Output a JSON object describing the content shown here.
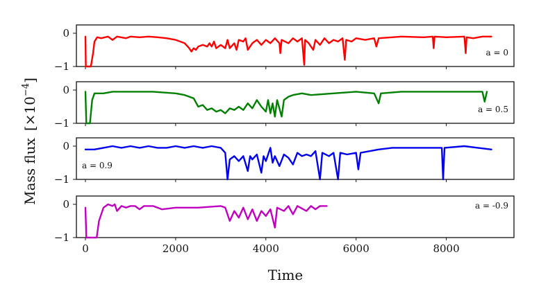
{
  "chart_data": {
    "type": "line",
    "ylabel": "Mass flux",
    "ylabel_unit_prefix": "[×10",
    "ylabel_unit_exponent": "−4",
    "ylabel_unit_suffix": "]",
    "xlabel": "Time",
    "x_ticks": [
      0,
      2000,
      4000,
      6000,
      8000
    ],
    "y_ticks": [
      0,
      -1
    ],
    "y_tick_labels": [
      "0",
      "−1"
    ],
    "xlim": [
      -200,
      9500
    ],
    "ylim": [
      -1,
      0.25
    ],
    "grid": false,
    "panels": [
      {
        "label": "a = 0",
        "label_position": "bottom-right",
        "color": "#ff0000",
        "points": [
          [
            0,
            -0.1
          ],
          [
            10,
            -1
          ],
          [
            60,
            -1
          ],
          [
            120,
            -1
          ],
          [
            170,
            -0.6
          ],
          [
            200,
            -0.25
          ],
          [
            260,
            -0.12
          ],
          [
            350,
            -0.15
          ],
          [
            500,
            -0.1
          ],
          [
            600,
            -0.2
          ],
          [
            700,
            -0.1
          ],
          [
            900,
            -0.15
          ],
          [
            1000,
            -0.1
          ],
          [
            1200,
            -0.12
          ],
          [
            1400,
            -0.1
          ],
          [
            1600,
            -0.12
          ],
          [
            1800,
            -0.15
          ],
          [
            2000,
            -0.2
          ],
          [
            2200,
            -0.3
          ],
          [
            2300,
            -0.45
          ],
          [
            2350,
            -0.55
          ],
          [
            2400,
            -0.45
          ],
          [
            2450,
            -0.5
          ],
          [
            2500,
            -0.4
          ],
          [
            2600,
            -0.35
          ],
          [
            2700,
            -0.4
          ],
          [
            2750,
            -0.3
          ],
          [
            2800,
            -0.4
          ],
          [
            2850,
            -0.25
          ],
          [
            2900,
            -0.45
          ],
          [
            3000,
            -0.35
          ],
          [
            3100,
            -0.45
          ],
          [
            3150,
            -0.2
          ],
          [
            3200,
            -0.45
          ],
          [
            3300,
            -0.3
          ],
          [
            3350,
            -0.5
          ],
          [
            3400,
            -0.2
          ],
          [
            3500,
            -0.25
          ],
          [
            3550,
            -0.15
          ],
          [
            3600,
            -0.5
          ],
          [
            3700,
            -0.3
          ],
          [
            3800,
            -0.2
          ],
          [
            3900,
            -0.35
          ],
          [
            4000,
            -0.2
          ],
          [
            4100,
            -0.3
          ],
          [
            4200,
            -0.15
          ],
          [
            4300,
            -0.3
          ],
          [
            4320,
            -0.6
          ],
          [
            4350,
            -0.2
          ],
          [
            4500,
            -0.3
          ],
          [
            4600,
            -0.15
          ],
          [
            4700,
            -0.25
          ],
          [
            4800,
            -0.15
          ],
          [
            4850,
            -0.95
          ],
          [
            4870,
            -0.2
          ],
          [
            4950,
            -0.3
          ],
          [
            5050,
            -0.5
          ],
          [
            5100,
            -0.2
          ],
          [
            5200,
            -0.35
          ],
          [
            5300,
            -0.15
          ],
          [
            5400,
            -0.3
          ],
          [
            5500,
            -0.2
          ],
          [
            5600,
            -0.25
          ],
          [
            5700,
            -0.15
          ],
          [
            5750,
            -0.8
          ],
          [
            5780,
            -0.2
          ],
          [
            5900,
            -0.25
          ],
          [
            6000,
            -0.15
          ],
          [
            6200,
            -0.2
          ],
          [
            6400,
            -0.15
          ],
          [
            6450,
            -0.4
          ],
          [
            6500,
            -0.15
          ],
          [
            6800,
            -0.12
          ],
          [
            7000,
            -0.1
          ],
          [
            7500,
            -0.12
          ],
          [
            7700,
            -0.1
          ],
          [
            7720,
            -0.45
          ],
          [
            7740,
            -0.1
          ],
          [
            8000,
            -0.12
          ],
          [
            8400,
            -0.1
          ],
          [
            8430,
            -0.6
          ],
          [
            8450,
            -0.12
          ],
          [
            8600,
            -0.15
          ],
          [
            8800,
            -0.1
          ],
          [
            9000,
            -0.1
          ]
        ]
      },
      {
        "label": "a = 0.5",
        "label_position": "bottom-right",
        "color": "#008000",
        "points": [
          [
            0,
            -0.05
          ],
          [
            20,
            -1
          ],
          [
            100,
            -1
          ],
          [
            150,
            -0.3
          ],
          [
            200,
            -0.1
          ],
          [
            300,
            -0.1
          ],
          [
            400,
            -0.1
          ],
          [
            600,
            -0.05
          ],
          [
            1000,
            -0.05
          ],
          [
            1500,
            -0.05
          ],
          [
            2000,
            -0.1
          ],
          [
            2200,
            -0.15
          ],
          [
            2400,
            -0.25
          ],
          [
            2500,
            -0.5
          ],
          [
            2600,
            -0.45
          ],
          [
            2700,
            -0.6
          ],
          [
            2800,
            -0.55
          ],
          [
            2900,
            -0.65
          ],
          [
            3000,
            -0.6
          ],
          [
            3100,
            -0.7
          ],
          [
            3200,
            -0.55
          ],
          [
            3300,
            -0.6
          ],
          [
            3400,
            -0.5
          ],
          [
            3500,
            -0.6
          ],
          [
            3600,
            -0.4
          ],
          [
            3700,
            -0.55
          ],
          [
            3800,
            -0.3
          ],
          [
            3900,
            -0.5
          ],
          [
            4000,
            -0.65
          ],
          [
            4050,
            -0.3
          ],
          [
            4100,
            -0.7
          ],
          [
            4150,
            -0.4
          ],
          [
            4200,
            -0.8
          ],
          [
            4250,
            -0.3
          ],
          [
            4300,
            -0.55
          ],
          [
            4350,
            -0.8
          ],
          [
            4400,
            -0.3
          ],
          [
            4500,
            -0.2
          ],
          [
            4600,
            -0.15
          ],
          [
            4800,
            -0.1
          ],
          [
            5000,
            -0.15
          ],
          [
            5500,
            -0.1
          ],
          [
            6000,
            -0.05
          ],
          [
            6400,
            -0.1
          ],
          [
            6500,
            -0.4
          ],
          [
            6550,
            -0.1
          ],
          [
            7000,
            -0.05
          ],
          [
            8000,
            -0.05
          ],
          [
            8800,
            -0.05
          ],
          [
            8850,
            -0.35
          ],
          [
            8900,
            -0.05
          ]
        ]
      },
      {
        "label": "a = 0.9",
        "label_position": "bottom-left",
        "color": "#0000ee",
        "points": [
          [
            0,
            -0.1
          ],
          [
            200,
            -0.1
          ],
          [
            400,
            -0.05
          ],
          [
            600,
            0
          ],
          [
            800,
            -0.05
          ],
          [
            1000,
            0
          ],
          [
            1200,
            -0.05
          ],
          [
            1400,
            0
          ],
          [
            1600,
            -0.05
          ],
          [
            1800,
            -0.05
          ],
          [
            2000,
            0
          ],
          [
            2200,
            -0.05
          ],
          [
            2400,
            0
          ],
          [
            2600,
            -0.05
          ],
          [
            2800,
            0
          ],
          [
            3000,
            -0.05
          ],
          [
            3100,
            -0.2
          ],
          [
            3150,
            -1
          ],
          [
            3200,
            -0.4
          ],
          [
            3300,
            -0.3
          ],
          [
            3400,
            -0.45
          ],
          [
            3500,
            -0.3
          ],
          [
            3600,
            -0.75
          ],
          [
            3650,
            -0.3
          ],
          [
            3700,
            -0.4
          ],
          [
            3800,
            -0.25
          ],
          [
            3900,
            -0.8
          ],
          [
            3950,
            -0.3
          ],
          [
            4000,
            -0.45
          ],
          [
            4100,
            -0.05
          ],
          [
            4150,
            -0.5
          ],
          [
            4200,
            -0.3
          ],
          [
            4300,
            -0.6
          ],
          [
            4400,
            -0.25
          ],
          [
            4500,
            -0.35
          ],
          [
            4600,
            -0.55
          ],
          [
            4700,
            -0.2
          ],
          [
            4800,
            -0.3
          ],
          [
            4900,
            -0.25
          ],
          [
            5000,
            -0.3
          ],
          [
            5100,
            -0.15
          ],
          [
            5200,
            -1
          ],
          [
            5250,
            -0.2
          ],
          [
            5400,
            -0.3
          ],
          [
            5500,
            -0.2
          ],
          [
            5600,
            -1
          ],
          [
            5650,
            -0.2
          ],
          [
            5800,
            -0.25
          ],
          [
            6000,
            -0.2
          ],
          [
            6050,
            -0.7
          ],
          [
            6100,
            -0.2
          ],
          [
            6300,
            -0.15
          ],
          [
            6500,
            -0.1
          ],
          [
            6800,
            -0.05
          ],
          [
            7000,
            -0.05
          ],
          [
            7200,
            -0.05
          ],
          [
            7500,
            -0.05
          ],
          [
            7900,
            -0.05
          ],
          [
            7930,
            -1
          ],
          [
            7960,
            -0.05
          ],
          [
            8400,
            0
          ],
          [
            8700,
            -0.05
          ],
          [
            9000,
            -0.1
          ]
        ]
      },
      {
        "label": "a = -0.9",
        "label_position": "top-right",
        "color": "#bf00bf",
        "points": [
          [
            0,
            -0.1
          ],
          [
            20,
            -1
          ],
          [
            250,
            -1
          ],
          [
            300,
            -0.5
          ],
          [
            400,
            -0.1
          ],
          [
            500,
            0
          ],
          [
            600,
            -0.05
          ],
          [
            650,
            0
          ],
          [
            700,
            -0.2
          ],
          [
            800,
            -0.05
          ],
          [
            900,
            -0.1
          ],
          [
            1000,
            -0.05
          ],
          [
            1100,
            -0.05
          ],
          [
            1200,
            -0.15
          ],
          [
            1300,
            -0.05
          ],
          [
            1500,
            -0.05
          ],
          [
            1700,
            -0.15
          ],
          [
            2000,
            -0.1
          ],
          [
            2500,
            -0.1
          ],
          [
            3000,
            -0.05
          ],
          [
            3100,
            -0.1
          ],
          [
            3200,
            -0.5
          ],
          [
            3300,
            -0.2
          ],
          [
            3400,
            -0.4
          ],
          [
            3500,
            -0.1
          ],
          [
            3600,
            -0.45
          ],
          [
            3700,
            -0.15
          ],
          [
            3800,
            -0.5
          ],
          [
            3900,
            -0.2
          ],
          [
            4000,
            -0.35
          ],
          [
            4100,
            -0.15
          ],
          [
            4200,
            -0.7
          ],
          [
            4250,
            -0.1
          ],
          [
            4400,
            -0.2
          ],
          [
            4500,
            -0.05
          ],
          [
            4600,
            -0.3
          ],
          [
            4700,
            -0.05
          ],
          [
            4900,
            -0.2
          ],
          [
            5000,
            -0.05
          ],
          [
            5100,
            -0.15
          ],
          [
            5200,
            -0.05
          ],
          [
            5350,
            -0.05
          ]
        ]
      }
    ]
  }
}
